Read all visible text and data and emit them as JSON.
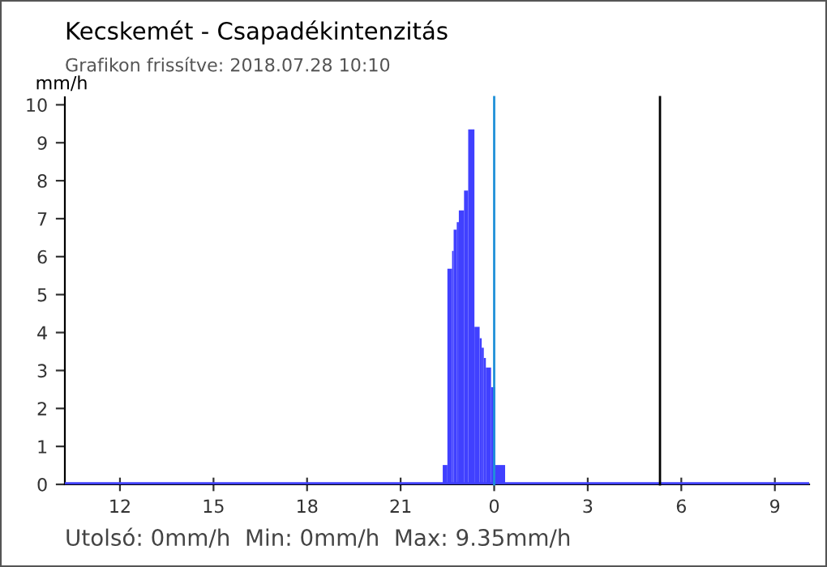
{
  "chart_data": {
    "type": "histogram",
    "title": "Kecskemét - Csapadékintenzitás",
    "subtitle": "Grafikon frissítve: 2018.07.28 10:10",
    "ylabel": "mm/h",
    "bins": [
      "2018-07-27T22:21",
      "2018-07-27T22:30",
      "2018-07-27T22:39",
      "2018-07-27T22:42",
      "2018-07-27T22:48",
      "2018-07-27T22:52",
      "2018-07-27T23:02",
      "2018-07-27T23:10",
      "2018-07-27T23:22",
      "2018-07-27T23:32",
      "2018-07-27T23:36",
      "2018-07-27T23:40",
      "2018-07-27T23:44",
      "2018-07-27T23:54",
      "2018-07-28T00:02",
      "2018-07-28T00:21"
    ],
    "values": [
      0.51,
      5.68,
      6.15,
      6.71,
      6.91,
      7.22,
      7.74,
      9.35,
      4.15,
      3.85,
      3.6,
      3.33,
      3.08,
      2.56,
      0.51
    ],
    "color": "#4040ff",
    "xlim": [
      "2018-07-27T10:14",
      "2018-07-28T10:06"
    ],
    "xticks": [
      {
        "value": "2018-07-27T12:00",
        "label": "12"
      },
      {
        "value": "2018-07-27T15:00",
        "label": "15"
      },
      {
        "value": "2018-07-27T18:00",
        "label": "18"
      },
      {
        "value": "2018-07-27T21:00",
        "label": "21"
      },
      {
        "value": "2018-07-28T00:00",
        "label": "0"
      },
      {
        "value": "2018-07-28T03:00",
        "label": "3"
      },
      {
        "value": "2018-07-28T06:00",
        "label": "6"
      },
      {
        "value": "2018-07-28T09:00",
        "label": "9"
      }
    ],
    "ylim": [
      0,
      10.2
    ],
    "yticks": [
      0,
      1,
      2,
      3,
      4,
      5,
      6,
      7,
      8,
      9,
      10
    ],
    "ref_lines": [
      {
        "axis": "y",
        "value": 0,
        "color": "#4040ff"
      },
      {
        "axis": "x",
        "value": "2018-07-28T00:00",
        "color": "#1e90d8"
      },
      {
        "axis": "x",
        "value": "2018-07-28T05:19",
        "color": "#000000"
      }
    ],
    "annotations": [
      "Utolsó: 0mm/h  Min: 0mm/h  Max: 9.35mm/h"
    ],
    "grid": false
  }
}
